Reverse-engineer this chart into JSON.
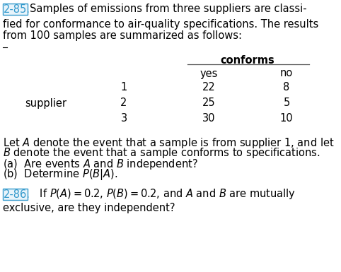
{
  "bg_color": "#ffffff",
  "problem_number_color": "#3399cc",
  "problem_number_285": "2-85.",
  "text_285_line1": "Samples of emissions from three suppliers are classi-",
  "text_285_line2": "fied for conformance to air-quality specifications. The results",
  "text_285_line3": "from 100 samples are summarized as follows:",
  "conforms_header": "conforms",
  "col_yes": "yes",
  "col_no": "no",
  "row_labels": [
    "1",
    "2",
    "3"
  ],
  "row_label_left": "supplier",
  "data_yes": [
    "22",
    "25",
    "30"
  ],
  "data_no": [
    "8",
    "5",
    "10"
  ],
  "text_body_line1": "Let $A$ denote the event that a sample is from supplier 1, and let",
  "text_body_line2": "$B$ denote the event that a sample conforms to specifications.",
  "text_body_line3": "(a)  Are events $A$ and $B$ independent?",
  "text_body_line4": "(b)  Determine $P(B|A)$.",
  "problem_number_286": "2-86.",
  "text_286_line1": "   If $P(A) = 0.2$, $P(B) = 0.2$, and $A$ and $B$ are mutually",
  "text_286_line2": "exclusive, are they independent?",
  "fs": 10.5,
  "fs_bold": 10.5
}
